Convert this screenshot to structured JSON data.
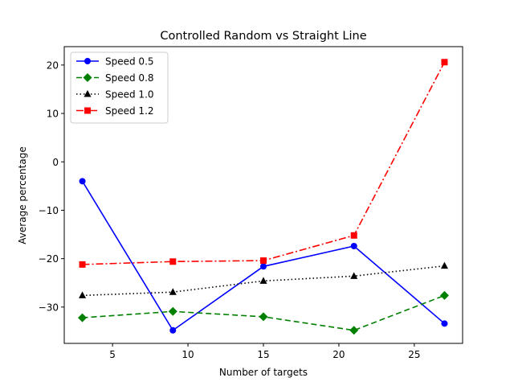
{
  "chart_data": {
    "type": "line",
    "title": "Controlled Random vs Straight Line",
    "xlabel": "Number of targets",
    "ylabel": "Average percentage",
    "xlim": [
      1.8,
      28.2
    ],
    "ylim": [
      -37.5,
      23.8
    ],
    "xticks": [
      5,
      10,
      15,
      20,
      25
    ],
    "yticks": [
      -30,
      -20,
      -10,
      0,
      10,
      20
    ],
    "xtick_labels": [
      "5",
      "10",
      "15",
      "20",
      "25"
    ],
    "ytick_labels": [
      "−30",
      "−20",
      "−10",
      "0",
      "10",
      "20"
    ],
    "grid": false,
    "legend": "top-left",
    "x": [
      3,
      9,
      15,
      21,
      27
    ],
    "series": [
      {
        "name": "Speed 0.5",
        "values": [
          -4.0,
          -34.8,
          -21.6,
          -17.4,
          -33.4
        ],
        "color": "#0000ff",
        "dash": "",
        "marker": "circle"
      },
      {
        "name": "Speed 0.8",
        "values": [
          -32.2,
          -30.9,
          -32.0,
          -34.8,
          -27.6
        ],
        "color": "#008000",
        "dash": "7,4",
        "marker": "diamond"
      },
      {
        "name": "Speed 1.0",
        "values": [
          -27.6,
          -26.9,
          -24.6,
          -23.6,
          -21.5
        ],
        "color": "#000000",
        "dash": "1.5,3",
        "marker": "triangle"
      },
      {
        "name": "Speed 1.2",
        "values": [
          -21.2,
          -20.6,
          -20.4,
          -15.2,
          20.6
        ],
        "color": "#ff0000",
        "dash": "9,3,2,3",
        "marker": "square"
      }
    ]
  }
}
